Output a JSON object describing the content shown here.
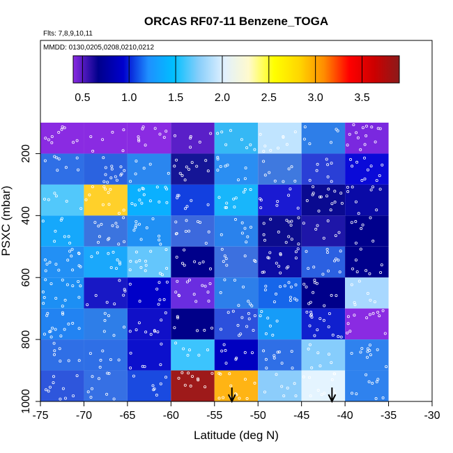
{
  "chart_data": {
    "type": "heatmap",
    "title": "ORCAS RF07-11 Benzene_TOGA",
    "subtitle_flights": "Flts: 7,8,9,10,11",
    "subtitle_dates": "MMDD: 0130,0205,0208,0210,0212",
    "xlabel": "Latitude (deg N)",
    "ylabel": "PSXC (mbar)",
    "xlim": [
      -75,
      -30
    ],
    "ylim": [
      1000,
      100
    ],
    "x_ticks": [
      "-75",
      "-70",
      "-65",
      "-60",
      "-55",
      "-50",
      "-45",
      "-40",
      "-35",
      "-30"
    ],
    "y_ticks": [
      "200",
      "400",
      "600",
      "800",
      "1000"
    ],
    "x_ticks_values": [
      -75,
      -70,
      -65,
      -60,
      -55,
      -50,
      -45,
      -40,
      -35,
      -30
    ],
    "y_ticks_values": [
      200,
      400,
      600,
      800,
      1000
    ],
    "colorbar": {
      "min": 0.4,
      "max": 3.9,
      "ticks": [
        "0.5",
        "1.0",
        "1.5",
        "2.0",
        "2.5",
        "3.0",
        "3.5"
      ],
      "tick_values": [
        0.5,
        1.0,
        1.5,
        2.0,
        2.5,
        3.0,
        3.5
      ],
      "colors": [
        "#8a2be2",
        "#00008b",
        "#0000cd",
        "#1e90ff",
        "#00bfff",
        "#87cefa",
        "#e0f0ff",
        "#fffacd",
        "#ffff00",
        "#ffd700",
        "#ff8c00",
        "#ff0000",
        "#cd0000",
        "#8b1a1a"
      ]
    },
    "x_bins": [
      -75,
      -70,
      -65,
      -60,
      -55,
      -50,
      -45,
      -40,
      -35
    ],
    "p_bins": [
      100,
      200,
      300,
      400,
      500,
      600,
      700,
      800,
      900,
      1000
    ],
    "cells": [
      [
        "#8a2be2",
        "#8a2be2",
        "#8a2be2",
        "#5a1fc8",
        "#35b8f5",
        "#c0e4ff",
        "#2e7ee8",
        "#7a28df"
      ],
      [
        "#2f6fe6",
        "#2b63e0",
        "#2a86ef",
        "#151596",
        "#2a8ef2",
        "#3f79df",
        "#2a3fd6",
        "#0a0ad8"
      ],
      [
        "#52c8fb",
        "#ffd02a",
        "#0ab0ff",
        "#1240e0",
        "#18b6fb",
        "#1a1ad2",
        "#0a0a90",
        "#0a0aa6"
      ],
      [
        "#16a8fb",
        "#3b74df",
        "#2090f4",
        "#3c69dd",
        "#2a82ec",
        "#0c0c8e",
        "#1e16a8",
        "#00008c"
      ],
      [
        "#2290f5",
        "#1aa8fb",
        "#64c6fc",
        "#00008b",
        "#3c70df",
        "#0c0ca4",
        "#2b60e1",
        "#00008c"
      ],
      [
        "#1c8ff4",
        "#1818c5",
        "#0000c8",
        "#6a2de0",
        "#2d7fea",
        "#1666ea",
        "#00008a",
        "#a8d8ff"
      ],
      [
        "#2283f2",
        "#2e7ee8",
        "#1010c8",
        "#000089",
        "#2c50dc",
        "#169cf8",
        "#1020ce",
        "#8a2be2"
      ],
      [
        "#2f6fe6",
        "#2f6fe6",
        "#0c10cc",
        "#3cc4fd",
        "#0000c0",
        "#2f6fe6",
        "#86cdfc",
        "#2f82ee"
      ],
      [
        "#2e56dc",
        "#3670e4",
        "#1a4ae0",
        "#9e1a1a",
        "#ffb414",
        "#8ccdfb",
        "#e4f4ff",
        "#2f82ee"
      ]
    ],
    "arrows_at_latitude": [
      -53,
      -41.5
    ]
  }
}
